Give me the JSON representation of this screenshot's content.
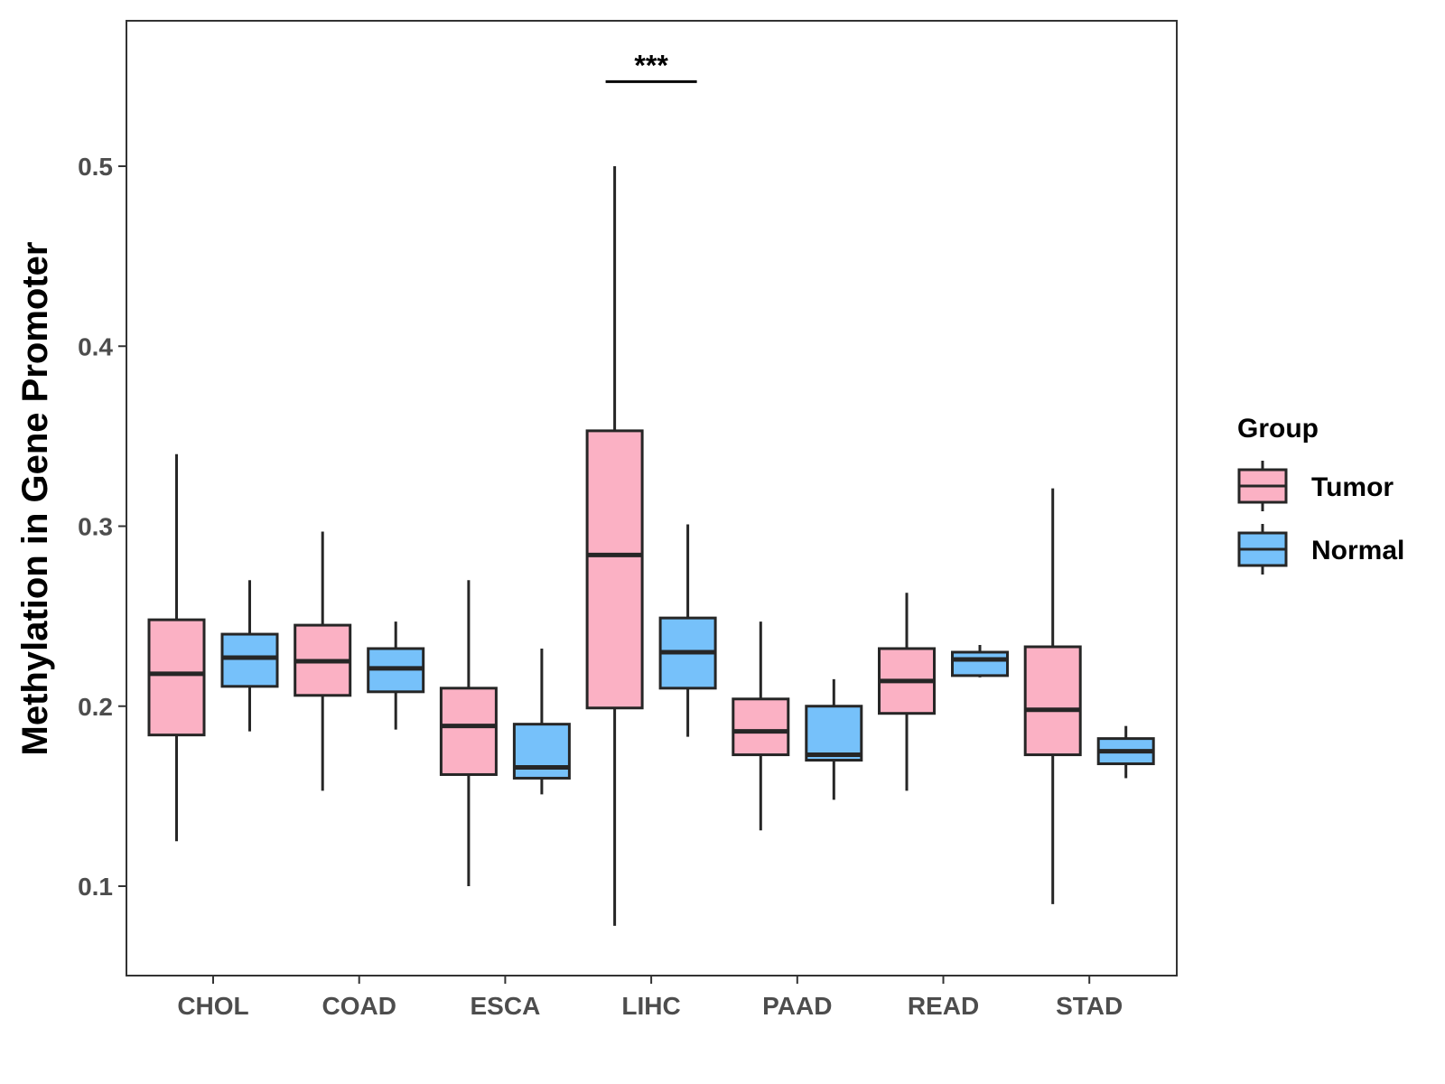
{
  "chart_data": {
    "type": "boxplot",
    "title": "",
    "xlabel": "",
    "ylabel": "Methylation in Gene Promoter",
    "ylim": [
      0.05,
      0.58
    ],
    "yticks": [
      0.1,
      0.2,
      0.3,
      0.4,
      0.5
    ],
    "ytick_labels": [
      "0.1",
      "0.2",
      "0.3",
      "0.4",
      "0.5"
    ],
    "categories": [
      "CHOL",
      "COAD",
      "ESCA",
      "LIHC",
      "PAAD",
      "READ",
      "STAD"
    ],
    "legend": {
      "title": "Group",
      "placement": "right",
      "entries": [
        {
          "name": "Tumor",
          "color": "#FBB1C4"
        },
        {
          "name": "Normal",
          "color": "#76C1FA"
        }
      ]
    },
    "series": [
      {
        "name": "Tumor",
        "color": "#FBB1C4",
        "boxes": [
          {
            "category": "CHOL",
            "min": 0.125,
            "q1": 0.184,
            "median": 0.218,
            "q3": 0.248,
            "max": 0.34
          },
          {
            "category": "COAD",
            "min": 0.153,
            "q1": 0.206,
            "median": 0.225,
            "q3": 0.245,
            "max": 0.297
          },
          {
            "category": "ESCA",
            "min": 0.1,
            "q1": 0.162,
            "median": 0.189,
            "q3": 0.21,
            "max": 0.27
          },
          {
            "category": "LIHC",
            "min": 0.078,
            "q1": 0.199,
            "median": 0.284,
            "q3": 0.353,
            "max": 0.5
          },
          {
            "category": "PAAD",
            "min": 0.131,
            "q1": 0.173,
            "median": 0.186,
            "q3": 0.204,
            "max": 0.247
          },
          {
            "category": "READ",
            "min": 0.153,
            "q1": 0.196,
            "median": 0.214,
            "q3": 0.232,
            "max": 0.263
          },
          {
            "category": "STAD",
            "min": 0.09,
            "q1": 0.173,
            "median": 0.198,
            "q3": 0.233,
            "max": 0.321
          }
        ]
      },
      {
        "name": "Normal",
        "color": "#76C1FA",
        "boxes": [
          {
            "category": "CHOL",
            "min": 0.186,
            "q1": 0.211,
            "median": 0.227,
            "q3": 0.24,
            "max": 0.27
          },
          {
            "category": "COAD",
            "min": 0.187,
            "q1": 0.208,
            "median": 0.221,
            "q3": 0.232,
            "max": 0.247
          },
          {
            "category": "ESCA",
            "min": 0.151,
            "q1": 0.16,
            "median": 0.166,
            "q3": 0.19,
            "max": 0.232
          },
          {
            "category": "LIHC",
            "min": 0.183,
            "q1": 0.21,
            "median": 0.23,
            "q3": 0.249,
            "max": 0.301
          },
          {
            "category": "PAAD",
            "min": 0.148,
            "q1": 0.17,
            "median": 0.173,
            "q3": 0.2,
            "max": 0.215
          },
          {
            "category": "READ",
            "min": 0.216,
            "q1": 0.217,
            "median": 0.226,
            "q3": 0.23,
            "max": 0.234
          },
          {
            "category": "STAD",
            "min": 0.16,
            "q1": 0.168,
            "median": 0.175,
            "q3": 0.182,
            "max": 0.189
          }
        ]
      }
    ],
    "annotations": [
      {
        "category": "LIHC",
        "text": "***",
        "y": 0.547
      }
    ]
  }
}
